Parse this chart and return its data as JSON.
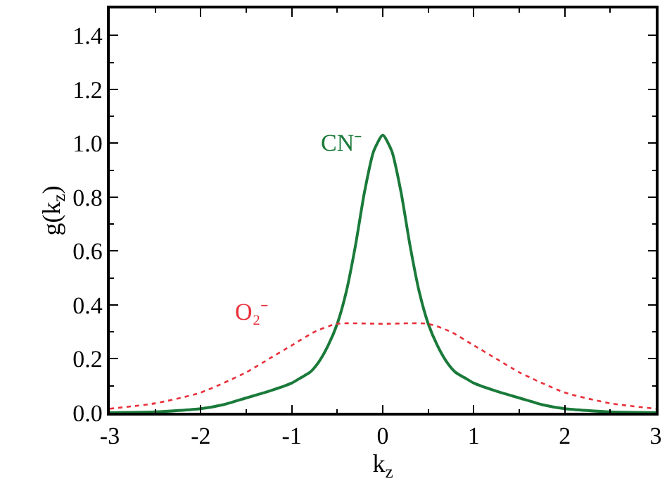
{
  "chart_data": {
    "type": "line",
    "xlabel": "k$_{z}$",
    "ylabel": "g(k$_{z}$)",
    "xlim": [
      -3,
      3
    ],
    "xticks": [
      -3,
      -2,
      -1,
      0,
      1,
      2,
      3
    ],
    "ylim": [
      0,
      1.5
    ],
    "yticks": [
      {
        "value": 0,
        "label": "0.0"
      },
      {
        "value": 0.2,
        "label": "0.2"
      },
      {
        "value": 0.4,
        "label": "0.4"
      },
      {
        "value": 0.6,
        "label": "0.6"
      },
      {
        "value": 0.8,
        "label": "0.8"
      },
      {
        "value": 1.0,
        "label": "1.0"
      },
      {
        "value": 1.2,
        "label": "1.2"
      },
      {
        "value": 1.4,
        "label": "1.4"
      }
    ],
    "legend": false,
    "marker": "none",
    "series": [
      {
        "name": "CN⁻",
        "color": "#1a7a3a",
        "line_style": "solid",
        "x": [
          -3,
          -2.5,
          -2,
          -1.75,
          -1.5,
          -1.25,
          -1,
          -0.9,
          -0.8,
          -0.7,
          -0.6,
          -0.5,
          -0.4,
          -0.3,
          -0.2,
          -0.1,
          0,
          0.1,
          0.2,
          0.3,
          0.4,
          0.5,
          0.6,
          0.7,
          0.8,
          0.9,
          1,
          1.25,
          1.5,
          1.75,
          2,
          2.5,
          3
        ],
        "values": [
          0.0,
          0.003,
          0.015,
          0.03,
          0.055,
          0.08,
          0.11,
          0.13,
          0.15,
          0.19,
          0.25,
          0.33,
          0.45,
          0.62,
          0.82,
          0.97,
          1.03,
          0.97,
          0.82,
          0.62,
          0.45,
          0.33,
          0.25,
          0.19,
          0.15,
          0.13,
          0.11,
          0.08,
          0.055,
          0.03,
          0.015,
          0.003,
          0.0
        ]
      },
      {
        "name": "O₂⁻",
        "color": "#e8303a",
        "line_style": "dotted",
        "x": [
          -3,
          -2.5,
          -2,
          -1.5,
          -1.25,
          -1,
          -0.75,
          -0.5,
          0,
          0.5,
          0.75,
          1,
          1.25,
          1.5,
          2,
          2.5,
          3
        ],
        "values": [
          0.015,
          0.035,
          0.075,
          0.15,
          0.2,
          0.25,
          0.3,
          0.33,
          0.33,
          0.33,
          0.3,
          0.25,
          0.2,
          0.15,
          0.075,
          0.035,
          0.015
        ]
      }
    ]
  }
}
